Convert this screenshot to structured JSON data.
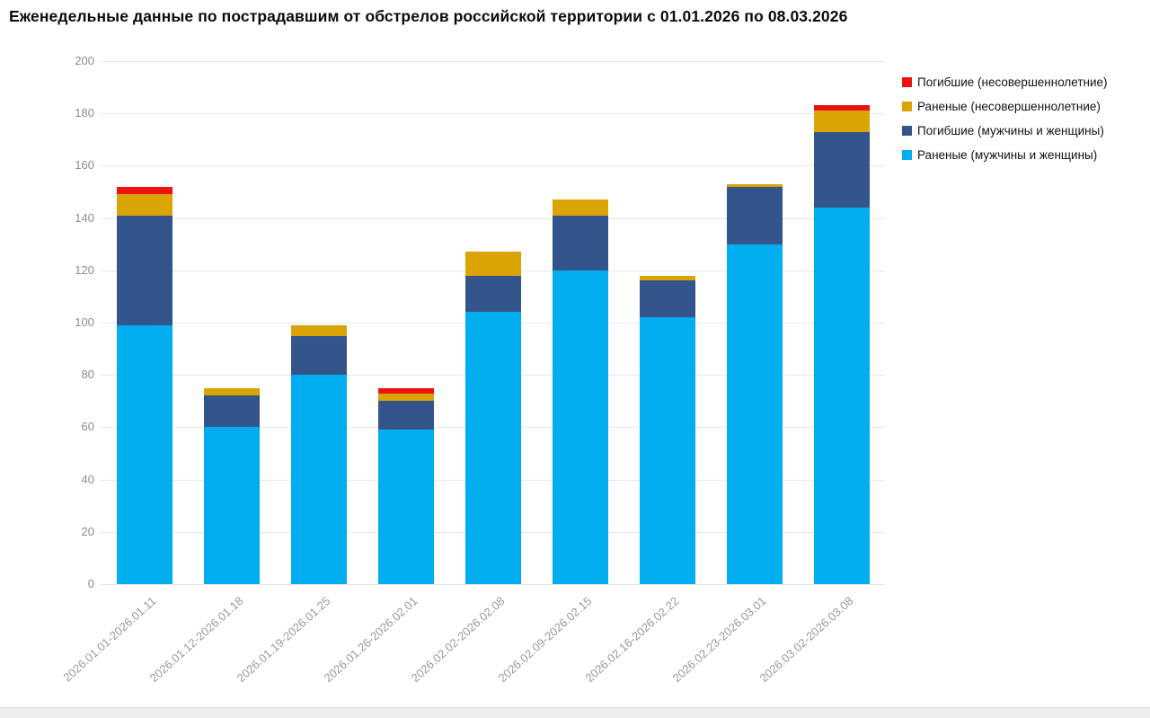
{
  "title": "Еженедельные данные по пострадавшим от обстрелов российской территории с 01.01.2026 по 08.03.2026",
  "chart_data": {
    "type": "bar",
    "stacked": true,
    "title": "Еженедельные данные по пострадавшим от обстрелов российской территории с 01.01.2026 по 08.03.2026",
    "categories": [
      "2026.01.01-2026.01.11",
      "2026.01.12-2026.01.18",
      "2026.01.19-2026.01.25",
      "2026.01.26-2026.02.01",
      "2026.02.02-2026.02.08",
      "2026.02.09-2026.02.15",
      "2026.02.16-2026.02.22",
      "2026.02.23-2026.03.01",
      "2026.03.02-2026.03.08"
    ],
    "series": [
      {
        "name": "Раненые (мужчины и женщины)",
        "color": "#00ADEF",
        "values": [
          99,
          60,
          80,
          59,
          104,
          120,
          102,
          130,
          144
        ]
      },
      {
        "name": "Погибшие (мужчины и женщины)",
        "color": "#34558B",
        "values": [
          42,
          12,
          15,
          11,
          14,
          21,
          14,
          22,
          29
        ]
      },
      {
        "name": "Раненые (несовершеннолетние)",
        "color": "#D9A404",
        "values": [
          8,
          3,
          4,
          3,
          9,
          6,
          2,
          1,
          8
        ]
      },
      {
        "name": "Погибшие (несовершеннолетние)",
        "color": "#EE1111",
        "values": [
          3,
          0,
          0,
          2,
          0,
          0,
          0,
          0,
          2
        ]
      }
    ],
    "totals": [
      152,
      75,
      99,
      75,
      127,
      147,
      118,
      153,
      183
    ],
    "legend_order_top_to_bottom": [
      "Погибшие (несовершеннолетние)",
      "Раненые (несовершеннолетние)",
      "Погибшие (мужчины и женщины)",
      "Раненые (мужчины и женщины)"
    ],
    "ylim": [
      0,
      200
    ],
    "ytick_step": 20,
    "yticks": [
      0,
      20,
      40,
      60,
      80,
      100,
      120,
      140,
      160,
      180,
      200
    ],
    "xlabel": "",
    "ylabel": "",
    "grid": "horizontal",
    "legend_position": "top-right"
  }
}
